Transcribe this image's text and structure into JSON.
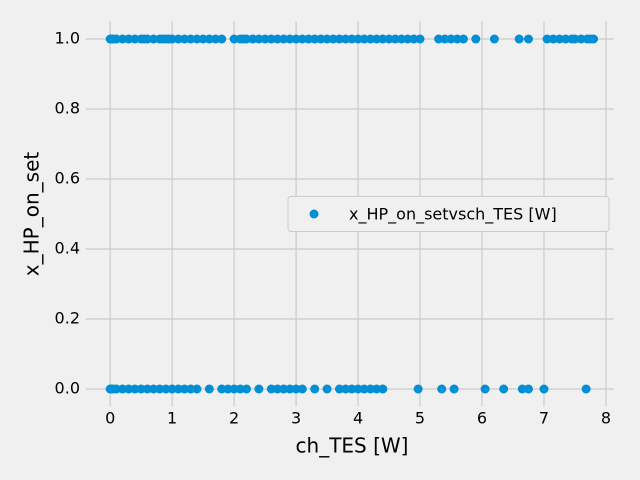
{
  "chart_data": {
    "type": "scatter",
    "xlabel": "ch_TES [W]",
    "ylabel": "x_HP_on_set",
    "xlim": [
      -0.39,
      8.13
    ],
    "ylim": [
      -0.05,
      1.05
    ],
    "xticks": [
      0,
      1,
      2,
      3,
      4,
      5,
      6,
      7,
      8
    ],
    "yticks": [
      {
        "value": 0,
        "label": "0.0"
      },
      0.2,
      0.4,
      0.6,
      0.8,
      {
        "value": 1,
        "label": "1.0"
      }
    ],
    "grid": true,
    "legend": "center right",
    "series": [
      {
        "name": "x_HP_on_setvsch_TES [W]",
        "color": "#008fd5",
        "x": [
          0,
          0.02,
          0.05,
          0.1,
          0.2,
          0.3,
          0.4,
          0.5,
          0.55,
          0.6,
          0.7,
          0.8,
          0.85,
          0.9,
          0.95,
          1.0,
          1.1,
          1.2,
          1.3,
          1.4,
          1.5,
          1.6,
          1.7,
          1.8,
          2.0,
          2.1,
          2.15,
          2.2,
          2.3,
          2.4,
          2.5,
          2.6,
          2.7,
          2.8,
          2.9,
          3.0,
          3.1,
          3.2,
          3.3,
          3.4,
          3.5,
          3.6,
          3.7,
          3.8,
          3.9,
          4.0,
          4.1,
          4.2,
          4.3,
          4.4,
          4.5,
          4.6,
          4.7,
          4.8,
          4.9,
          5.0,
          5.3,
          5.4,
          5.5,
          5.6,
          5.7,
          5.9,
          6.2,
          6.6,
          6.75,
          7.05,
          7.15,
          7.25,
          7.35,
          7.45,
          7.5,
          7.6,
          7.7,
          7.75,
          7.8,
          0,
          0.02,
          0.05,
          0.1,
          0.2,
          0.3,
          0.4,
          0.5,
          0.6,
          0.7,
          0.8,
          0.9,
          1.0,
          1.1,
          1.2,
          1.3,
          1.4,
          1.6,
          1.8,
          1.9,
          2.0,
          2.1,
          2.2,
          2.4,
          2.6,
          2.7,
          2.8,
          2.9,
          3.0,
          3.1,
          3.3,
          3.5,
          3.7,
          3.8,
          3.9,
          4.0,
          4.1,
          4.2,
          4.3,
          4.4,
          4.97,
          5.35,
          5.55,
          6.05,
          6.35,
          6.65,
          6.75,
          7.0,
          7.68
        ],
        "values": [
          1,
          1,
          1,
          1,
          1,
          1,
          1,
          1,
          1,
          1,
          1,
          1,
          1,
          1,
          1,
          1,
          1,
          1,
          1,
          1,
          1,
          1,
          1,
          1,
          1,
          1,
          1,
          1,
          1,
          1,
          1,
          1,
          1,
          1,
          1,
          1,
          1,
          1,
          1,
          1,
          1,
          1,
          1,
          1,
          1,
          1,
          1,
          1,
          1,
          1,
          1,
          1,
          1,
          1,
          1,
          1,
          1,
          1,
          1,
          1,
          1,
          1,
          1,
          1,
          1,
          1,
          1,
          1,
          1,
          1,
          1,
          1,
          1,
          1,
          1,
          0,
          0,
          0,
          0,
          0,
          0,
          0,
          0,
          0,
          0,
          0,
          0,
          0,
          0,
          0,
          0,
          0,
          0,
          0,
          0,
          0,
          0,
          0,
          0,
          0,
          0,
          0,
          0,
          0,
          0,
          0,
          0,
          0,
          0,
          0,
          0,
          0,
          0,
          0,
          0,
          0,
          0,
          0,
          0,
          0,
          0,
          0,
          0,
          0
        ]
      }
    ]
  }
}
